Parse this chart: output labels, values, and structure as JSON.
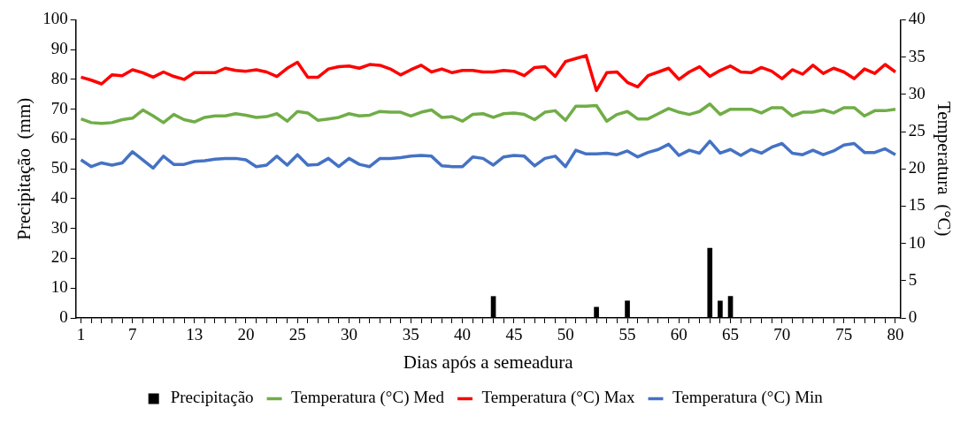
{
  "chart_data": {
    "type": "line",
    "xlabel": "Dias após a semeadura",
    "ylabel": "Precipitação  (mm)",
    "y2label": "Temperatura  (°C)",
    "categories": [
      "1",
      null,
      null,
      null,
      null,
      "7",
      null,
      null,
      null,
      null,
      null,
      "13",
      null,
      null,
      null,
      null,
      "20",
      null,
      null,
      null,
      null,
      "25",
      null,
      null,
      null,
      null,
      "30",
      null,
      null,
      null,
      null,
      null,
      "35",
      null,
      null,
      null,
      null,
      "40",
      null,
      null,
      null,
      null,
      "45",
      null,
      null,
      null,
      null,
      "50",
      null,
      null,
      null,
      null,
      null,
      "55",
      null,
      null,
      null,
      null,
      "60",
      null,
      null,
      null,
      null,
      "65",
      null,
      null,
      null,
      null,
      "70",
      null,
      null,
      null,
      null,
      null,
      "75",
      null,
      null,
      null,
      null,
      "80"
    ],
    "ylim": [
      0,
      100
    ],
    "yticks": [
      0,
      10,
      20,
      30,
      40,
      50,
      60,
      70,
      80,
      90,
      100
    ],
    "y2lim": [
      0,
      40
    ],
    "y2ticks": [
      0,
      5,
      10,
      15,
      20,
      25,
      30,
      35,
      40
    ],
    "grid": false,
    "legend": "bottom",
    "marker": "none",
    "line_style": "solid",
    "series": [
      {
        "name": "Precipitação",
        "type": "bar",
        "axis": "y",
        "color": "#000000",
        "values": [
          null,
          null,
          null,
          null,
          null,
          null,
          null,
          null,
          null,
          null,
          null,
          null,
          null,
          null,
          null,
          null,
          null,
          null,
          null,
          null,
          null,
          null,
          null,
          null,
          null,
          null,
          null,
          null,
          null,
          null,
          null,
          null,
          null,
          null,
          null,
          null,
          null,
          null,
          null,
          null,
          7.2,
          null,
          null,
          null,
          null,
          null,
          null,
          null,
          null,
          null,
          3.6,
          null,
          null,
          5.7,
          null,
          null,
          null,
          null,
          null,
          null,
          null,
          23.4,
          5.7,
          7.2,
          null,
          null,
          null,
          null,
          null,
          null,
          null,
          null,
          null,
          null,
          null,
          null,
          null,
          null,
          null,
          null
        ]
      },
      {
        "name": "Temperatura (°C) Med",
        "axis": "y2",
        "color": "#70ad47",
        "values": [
          26.7,
          26.2,
          26.1,
          26.2,
          26.6,
          26.8,
          27.9,
          27.1,
          26.2,
          27.3,
          26.6,
          26.3,
          26.9,
          27.1,
          27.1,
          27.4,
          27.2,
          26.9,
          27.0,
          27.4,
          26.4,
          27.7,
          27.5,
          26.5,
          26.7,
          26.9,
          27.4,
          27.1,
          27.2,
          27.7,
          27.6,
          27.6,
          27.1,
          27.6,
          27.9,
          26.9,
          27.0,
          26.4,
          27.3,
          27.4,
          26.9,
          27.4,
          27.5,
          27.3,
          26.6,
          27.6,
          27.8,
          26.5,
          28.4,
          28.4,
          28.5,
          26.4,
          27.3,
          27.7,
          26.7,
          26.7,
          27.4,
          28.1,
          27.6,
          27.3,
          27.7,
          28.7,
          27.3,
          28.0,
          28.0,
          28.0,
          27.5,
          28.2,
          28.2,
          27.1,
          27.6,
          27.6,
          27.9,
          27.5,
          28.2,
          28.2,
          27.1,
          27.8,
          27.8,
          28.0
        ]
      },
      {
        "name": "Temperatura (°C) Max",
        "axis": "y2",
        "color": "#ff0000",
        "values": [
          32.3,
          31.9,
          31.4,
          32.6,
          32.5,
          33.3,
          32.9,
          32.3,
          33.0,
          32.4,
          32.0,
          32.9,
          32.9,
          32.9,
          33.5,
          33.2,
          33.1,
          33.3,
          33.0,
          32.4,
          33.5,
          34.3,
          32.3,
          32.3,
          33.4,
          33.7,
          33.8,
          33.5,
          34.0,
          33.9,
          33.4,
          32.6,
          33.3,
          33.9,
          33.0,
          33.4,
          32.9,
          33.2,
          33.2,
          33.0,
          33.0,
          33.2,
          33.1,
          32.5,
          33.6,
          33.7,
          32.4,
          34.4,
          34.8,
          35.2,
          30.5,
          32.9,
          33.0,
          31.6,
          31.0,
          32.5,
          33.0,
          33.5,
          32.0,
          33.0,
          33.7,
          32.4,
          33.2,
          33.8,
          33.0,
          32.9,
          33.6,
          33.1,
          32.1,
          33.3,
          32.7,
          33.9,
          32.8,
          33.5,
          33.0,
          32.1,
          33.4,
          32.8,
          34.0,
          33.0
        ]
      },
      {
        "name": "Temperatura (°C) Min",
        "axis": "y2",
        "color": "#4472c4",
        "values": [
          21.2,
          20.3,
          20.8,
          20.5,
          20.8,
          22.3,
          21.2,
          20.1,
          21.7,
          20.6,
          20.6,
          21.0,
          21.1,
          21.3,
          21.4,
          21.4,
          21.2,
          20.3,
          20.5,
          21.7,
          20.5,
          21.9,
          20.5,
          20.6,
          21.4,
          20.3,
          21.4,
          20.6,
          20.3,
          21.4,
          21.4,
          21.5,
          21.7,
          21.8,
          21.7,
          20.4,
          20.3,
          20.3,
          21.6,
          21.4,
          20.5,
          21.6,
          21.8,
          21.7,
          20.4,
          21.4,
          21.7,
          20.3,
          22.5,
          22.0,
          22.0,
          22.1,
          21.9,
          22.4,
          21.6,
          22.2,
          22.6,
          23.3,
          21.8,
          22.5,
          22.1,
          23.7,
          22.1,
          22.6,
          21.8,
          22.6,
          22.1,
          22.9,
          23.4,
          22.1,
          21.9,
          22.5,
          21.9,
          22.4,
          23.2,
          23.4,
          22.2,
          22.2,
          22.7,
          21.9
        ]
      }
    ]
  }
}
